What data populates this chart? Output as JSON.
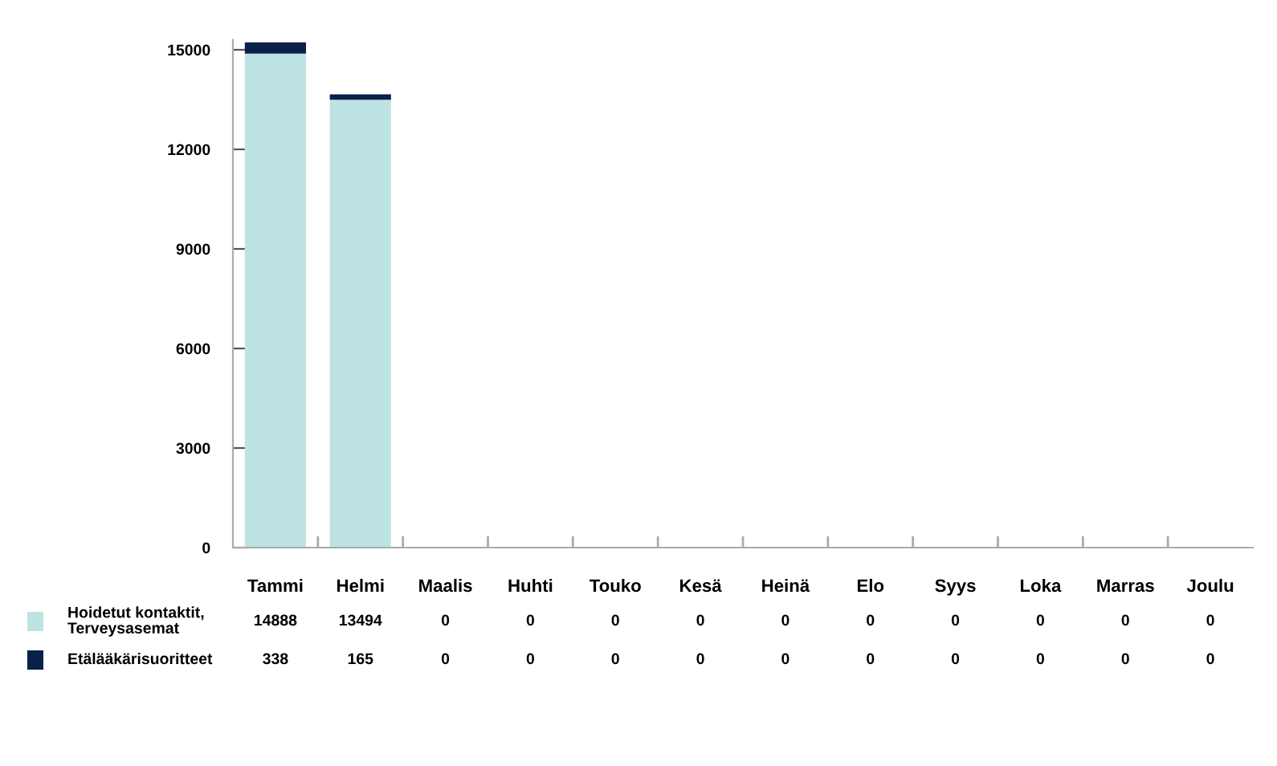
{
  "chart_data": {
    "type": "bar",
    "stacked": true,
    "categories": [
      "Tammi",
      "Helmi",
      "Maalis",
      "Huhti",
      "Touko",
      "Kesä",
      "Heinä",
      "Elo",
      "Syys",
      "Loka",
      "Marras",
      "Joulu"
    ],
    "series": [
      {
        "name": "Hoidetut kontaktit,\nTerveysasemat",
        "color": "#bde3e3",
        "values": [
          14888,
          13494,
          0,
          0,
          0,
          0,
          0,
          0,
          0,
          0,
          0,
          0
        ]
      },
      {
        "name": "Etälääkärisuoritteet",
        "color": "#0b1f4b",
        "values": [
          338,
          165,
          0,
          0,
          0,
          0,
          0,
          0,
          0,
          0,
          0,
          0
        ]
      }
    ],
    "ylim": [
      0,
      15300
    ],
    "yticks": [
      0,
      3000,
      6000,
      9000,
      12000,
      15000
    ],
    "data_labels": true,
    "legend": "bottom left",
    "grid": false
  }
}
